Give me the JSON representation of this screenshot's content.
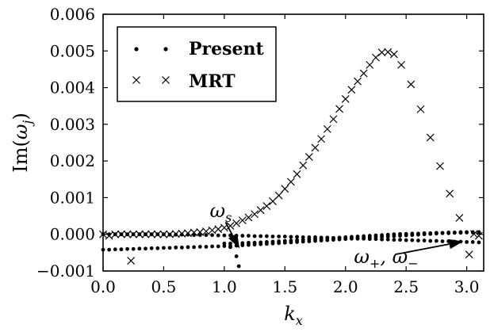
{
  "chart_data": {
    "type": "scatter",
    "title": "",
    "xlabel": "k_x",
    "ylabel": "Im(ω_j)",
    "xlabel_parts": {
      "main": "k",
      "sub": "x"
    },
    "ylabel_parts": {
      "prefix": "Im(",
      "main": "ω",
      "sub": "j",
      "suffix": ")"
    },
    "xlim": [
      0.0,
      3.14
    ],
    "ylim": [
      -0.001,
      0.006
    ],
    "x_ticks": [
      {
        "value": 0.0,
        "label": "0.0"
      },
      {
        "value": 0.5,
        "label": "0.5"
      },
      {
        "value": 1.0,
        "label": "1.0"
      },
      {
        "value": 1.5,
        "label": "1.5"
      },
      {
        "value": 2.0,
        "label": "2.0"
      },
      {
        "value": 2.5,
        "label": "2.5"
      },
      {
        "value": 3.0,
        "label": "3.0"
      }
    ],
    "y_ticks": [
      {
        "value": -0.001,
        "label": "−0.001"
      },
      {
        "value": 0.0,
        "label": "0.000"
      },
      {
        "value": 0.001,
        "label": "0.001"
      },
      {
        "value": 0.002,
        "label": "0.002"
      },
      {
        "value": 0.003,
        "label": "0.003"
      },
      {
        "value": 0.004,
        "label": "0.004"
      },
      {
        "value": 0.005,
        "label": "0.005"
      },
      {
        "value": 0.006,
        "label": "0.006"
      }
    ],
    "legend": {
      "location": "top-left",
      "entries": [
        {
          "label": "Present",
          "marker": "dot"
        },
        {
          "label": "MRT",
          "marker": "x"
        }
      ]
    },
    "series": [
      {
        "name": "Present",
        "marker": "dot",
        "points": [
          {
            "x": 0.0,
            "y": 0.0
          },
          {
            "x": 0.05,
            "y": 0.0
          },
          {
            "x": 0.1,
            "y": 0.0
          },
          {
            "x": 0.15,
            "y": 0.0
          },
          {
            "x": 0.2,
            "y": 0.0
          },
          {
            "x": 0.25,
            "y": 0.0
          },
          {
            "x": 0.3,
            "y": 0.0
          },
          {
            "x": 0.35,
            "y": 0.0
          },
          {
            "x": 0.4,
            "y": 0.0
          },
          {
            "x": 0.45,
            "y": 0.0
          },
          {
            "x": 0.5,
            "y": 0.0
          },
          {
            "x": 0.55,
            "y": -1e-05
          },
          {
            "x": 0.6,
            "y": -1e-05
          },
          {
            "x": 0.65,
            "y": -1e-05
          },
          {
            "x": 0.7,
            "y": -1e-05
          },
          {
            "x": 0.75,
            "y": -2e-05
          },
          {
            "x": 0.8,
            "y": -2e-05
          },
          {
            "x": 0.85,
            "y": -2e-05
          },
          {
            "x": 0.9,
            "y": -2e-05
          },
          {
            "x": 0.95,
            "y": -3e-05
          },
          {
            "x": 1.0,
            "y": -3e-05
          },
          {
            "x": 1.05,
            "y": -3e-05
          },
          {
            "x": 1.1,
            "y": -4e-05
          },
          {
            "x": 1.15,
            "y": -4e-05
          },
          {
            "x": 1.2,
            "y": -4e-05
          },
          {
            "x": 1.25,
            "y": -5e-05
          },
          {
            "x": 1.3,
            "y": -5e-05
          },
          {
            "x": 1.35,
            "y": -5e-05
          },
          {
            "x": 1.4,
            "y": -6e-05
          },
          {
            "x": 1.45,
            "y": -6e-05
          },
          {
            "x": 1.5,
            "y": -6e-05
          },
          {
            "x": 1.55,
            "y": -7e-05
          },
          {
            "x": 1.6,
            "y": -7e-05
          },
          {
            "x": 1.65,
            "y": -8e-05
          },
          {
            "x": 1.7,
            "y": -8e-05
          },
          {
            "x": 1.75,
            "y": -8e-05
          },
          {
            "x": 1.8,
            "y": -9e-05
          },
          {
            "x": 1.85,
            "y": -9e-05
          },
          {
            "x": 1.9,
            "y": -0.0001
          },
          {
            "x": 1.95,
            "y": -0.0001
          },
          {
            "x": 2.0,
            "y": -0.00011
          },
          {
            "x": 2.05,
            "y": -0.00011
          },
          {
            "x": 2.1,
            "y": -0.00012
          },
          {
            "x": 2.15,
            "y": -0.00012
          },
          {
            "x": 2.2,
            "y": -0.00013
          },
          {
            "x": 2.25,
            "y": -0.00013
          },
          {
            "x": 2.3,
            "y": -0.00014
          },
          {
            "x": 2.35,
            "y": -0.00014
          },
          {
            "x": 2.4,
            "y": -0.00015
          },
          {
            "x": 2.45,
            "y": -0.00015
          },
          {
            "x": 2.5,
            "y": -0.00016
          },
          {
            "x": 2.55,
            "y": -0.00016
          },
          {
            "x": 2.6,
            "y": -0.00017
          },
          {
            "x": 2.65,
            "y": -0.00017
          },
          {
            "x": 2.7,
            "y": -0.00018
          },
          {
            "x": 2.75,
            "y": -0.00018
          },
          {
            "x": 2.8,
            "y": -0.00019
          },
          {
            "x": 2.85,
            "y": -0.00019
          },
          {
            "x": 2.9,
            "y": -0.0002
          },
          {
            "x": 2.95,
            "y": -0.0002
          },
          {
            "x": 3.0,
            "y": -0.00021
          },
          {
            "x": 3.05,
            "y": -0.00021
          },
          {
            "x": 3.1,
            "y": -0.00022
          },
          {
            "x": 0.0,
            "y": -0.00042
          },
          {
            "x": 0.05,
            "y": -0.00042
          },
          {
            "x": 0.1,
            "y": -0.00041
          },
          {
            "x": 0.15,
            "y": -0.00041
          },
          {
            "x": 0.2,
            "y": -0.0004
          },
          {
            "x": 0.25,
            "y": -0.0004
          },
          {
            "x": 0.3,
            "y": -0.00039
          },
          {
            "x": 0.35,
            "y": -0.00039
          },
          {
            "x": 0.4,
            "y": -0.00038
          },
          {
            "x": 0.45,
            "y": -0.00038
          },
          {
            "x": 0.5,
            "y": -0.00037
          },
          {
            "x": 0.55,
            "y": -0.00037
          },
          {
            "x": 0.6,
            "y": -0.00036
          },
          {
            "x": 0.65,
            "y": -0.00036
          },
          {
            "x": 0.7,
            "y": -0.00035
          },
          {
            "x": 0.75,
            "y": -0.00035
          },
          {
            "x": 0.8,
            "y": -0.00034
          },
          {
            "x": 0.85,
            "y": -0.00034
          },
          {
            "x": 0.9,
            "y": -0.00033
          },
          {
            "x": 0.95,
            "y": -0.00033
          },
          {
            "x": 1.0,
            "y": -0.00032
          },
          {
            "x": 1.05,
            "y": -0.00032
          },
          {
            "x": 1.1,
            "y": -0.00031
          },
          {
            "x": 1.15,
            "y": -0.0003
          },
          {
            "x": 1.2,
            "y": -0.00029
          },
          {
            "x": 1.25,
            "y": -0.00028
          },
          {
            "x": 1.3,
            "y": -0.00027
          },
          {
            "x": 1.35,
            "y": -0.00026
          },
          {
            "x": 1.4,
            "y": -0.00025
          },
          {
            "x": 1.45,
            "y": -0.00024
          },
          {
            "x": 1.5,
            "y": -0.00023
          },
          {
            "x": 1.55,
            "y": -0.00022
          },
          {
            "x": 1.6,
            "y": -0.00021
          },
          {
            "x": 1.65,
            "y": -0.0002
          },
          {
            "x": 1.7,
            "y": -0.00019
          },
          {
            "x": 1.75,
            "y": -0.00018
          },
          {
            "x": 1.8,
            "y": -0.00017
          },
          {
            "x": 1.85,
            "y": -0.00016
          },
          {
            "x": 1.9,
            "y": -0.00015
          },
          {
            "x": 1.95,
            "y": -0.00014
          },
          {
            "x": 2.0,
            "y": -0.00013
          },
          {
            "x": 2.05,
            "y": -0.00012
          },
          {
            "x": 2.1,
            "y": -0.00011
          },
          {
            "x": 2.15,
            "y": -0.0001
          },
          {
            "x": 2.2,
            "y": -9e-05
          },
          {
            "x": 2.25,
            "y": -8e-05
          },
          {
            "x": 2.3,
            "y": -7e-05
          },
          {
            "x": 2.35,
            "y": -6e-05
          },
          {
            "x": 2.4,
            "y": -5e-05
          },
          {
            "x": 2.45,
            "y": -4e-05
          },
          {
            "x": 2.5,
            "y": -3e-05
          },
          {
            "x": 2.55,
            "y": -2e-05
          },
          {
            "x": 2.6,
            "y": -1e-05
          },
          {
            "x": 2.65,
            "y": 0.0
          },
          {
            "x": 2.7,
            "y": 1e-05
          },
          {
            "x": 2.75,
            "y": 2e-05
          },
          {
            "x": 2.8,
            "y": 3e-05
          },
          {
            "x": 2.85,
            "y": 3e-05
          },
          {
            "x": 2.9,
            "y": 4e-05
          },
          {
            "x": 2.95,
            "y": 4e-05
          },
          {
            "x": 3.0,
            "y": 5e-05
          },
          {
            "x": 3.05,
            "y": 5e-05
          },
          {
            "x": 3.1,
            "y": 5e-05
          },
          {
            "x": 1.0,
            "y": -0.00025
          },
          {
            "x": 1.05,
            "y": -0.00025
          },
          {
            "x": 1.1,
            "y": -0.00024
          },
          {
            "x": 1.15,
            "y": -0.00024
          },
          {
            "x": 1.2,
            "y": -0.00023
          },
          {
            "x": 1.25,
            "y": -0.00023
          },
          {
            "x": 1.3,
            "y": -0.00022
          },
          {
            "x": 1.35,
            "y": -0.00021
          },
          {
            "x": 1.4,
            "y": -0.0002
          },
          {
            "x": 1.45,
            "y": -0.00019
          },
          {
            "x": 1.5,
            "y": -0.00018
          },
          {
            "x": 1.55,
            "y": -0.00017
          },
          {
            "x": 1.6,
            "y": -0.00016
          },
          {
            "x": 1.65,
            "y": -0.00015
          },
          {
            "x": 1.7,
            "y": -0.00014
          },
          {
            "x": 1.75,
            "y": -0.00013
          },
          {
            "x": 1.8,
            "y": -0.00012
          },
          {
            "x": 1.85,
            "y": -0.00011
          },
          {
            "x": 1.9,
            "y": -0.0001
          },
          {
            "x": 1.95,
            "y": -9e-05
          },
          {
            "x": 2.0,
            "y": -8e-05
          },
          {
            "x": 2.05,
            "y": -7e-05
          },
          {
            "x": 2.1,
            "y": -6e-05
          },
          {
            "x": 2.15,
            "y": -5e-05
          },
          {
            "x": 2.2,
            "y": -4e-05
          },
          {
            "x": 2.25,
            "y": -3e-05
          },
          {
            "x": 2.3,
            "y": -2e-05
          },
          {
            "x": 2.35,
            "y": -1e-05
          },
          {
            "x": 2.4,
            "y": 0.0
          },
          {
            "x": 2.45,
            "y": 1e-05
          },
          {
            "x": 2.5,
            "y": 1e-05
          },
          {
            "x": 2.55,
            "y": 2e-05
          },
          {
            "x": 2.6,
            "y": 2e-05
          },
          {
            "x": 2.65,
            "y": 3e-05
          },
          {
            "x": 2.7,
            "y": 3e-05
          },
          {
            "x": 2.75,
            "y": 4e-05
          },
          {
            "x": 2.8,
            "y": 4e-05
          },
          {
            "x": 2.85,
            "y": 5e-05
          },
          {
            "x": 2.9,
            "y": 5e-05
          },
          {
            "x": 2.95,
            "y": 6e-05
          },
          {
            "x": 3.0,
            "y": 6e-05
          },
          {
            "x": 3.05,
            "y": 6e-05
          },
          {
            "x": 3.1,
            "y": 6e-05
          },
          {
            "x": 1.05,
            "y": -0.00035
          },
          {
            "x": 1.1,
            "y": -0.0006
          },
          {
            "x": 1.12,
            "y": -0.00087
          }
        ]
      },
      {
        "name": "MRT",
        "marker": "x",
        "points": [
          {
            "x": 0.0,
            "y": 0.0
          },
          {
            "x": 0.05,
            "y": -4e-05
          },
          {
            "x": 0.1,
            "y": 0.0
          },
          {
            "x": 0.15,
            "y": 0.0
          },
          {
            "x": 0.2,
            "y": 0.0
          },
          {
            "x": 0.25,
            "y": 0.0
          },
          {
            "x": 0.3,
            "y": 0.0
          },
          {
            "x": 0.35,
            "y": 0.0
          },
          {
            "x": 0.4,
            "y": 0.0
          },
          {
            "x": 0.45,
            "y": 0.0
          },
          {
            "x": 0.5,
            "y": 0.0
          },
          {
            "x": 0.55,
            "y": 0.0
          },
          {
            "x": 0.6,
            "y": 1e-05
          },
          {
            "x": 0.65,
            "y": 2e-05
          },
          {
            "x": 0.7,
            "y": 3e-05
          },
          {
            "x": 0.75,
            "y": 5e-05
          },
          {
            "x": 0.8,
            "y": 6e-05
          },
          {
            "x": 0.85,
            "y": 8e-05
          },
          {
            "x": 0.9,
            "y": 0.00011
          },
          {
            "x": 0.95,
            "y": 0.00014
          },
          {
            "x": 1.0,
            "y": 0.00018
          },
          {
            "x": 1.05,
            "y": 0.00023
          },
          {
            "x": 1.1,
            "y": 0.0003
          },
          {
            "x": 1.15,
            "y": 0.00038
          },
          {
            "x": 1.2,
            "y": 0.00046
          },
          {
            "x": 1.25,
            "y": 0.00055
          },
          {
            "x": 1.3,
            "y": 0.00066
          },
          {
            "x": 1.35,
            "y": 0.00077
          },
          {
            "x": 1.4,
            "y": 0.0009
          },
          {
            "x": 1.45,
            "y": 0.00106
          },
          {
            "x": 1.5,
            "y": 0.00124
          },
          {
            "x": 1.55,
            "y": 0.00143
          },
          {
            "x": 1.6,
            "y": 0.00164
          },
          {
            "x": 1.65,
            "y": 0.00188
          },
          {
            "x": 1.7,
            "y": 0.00211
          },
          {
            "x": 1.75,
            "y": 0.00236
          },
          {
            "x": 1.8,
            "y": 0.0026
          },
          {
            "x": 1.85,
            "y": 0.00287
          },
          {
            "x": 1.9,
            "y": 0.00314
          },
          {
            "x": 1.95,
            "y": 0.00342
          },
          {
            "x": 2.0,
            "y": 0.00369
          },
          {
            "x": 2.05,
            "y": 0.00394
          },
          {
            "x": 2.1,
            "y": 0.00417
          },
          {
            "x": 2.15,
            "y": 0.00439
          },
          {
            "x": 2.2,
            "y": 0.00462
          },
          {
            "x": 2.25,
            "y": 0.00482
          },
          {
            "x": 2.3,
            "y": 0.00496
          },
          {
            "x": 2.35,
            "y": 0.00497
          },
          {
            "x": 2.4,
            "y": 0.00491
          },
          {
            "x": 2.46,
            "y": 0.00462
          },
          {
            "x": 2.54,
            "y": 0.00409
          },
          {
            "x": 2.62,
            "y": 0.00341
          },
          {
            "x": 2.7,
            "y": 0.00264
          },
          {
            "x": 2.78,
            "y": 0.00186
          },
          {
            "x": 2.86,
            "y": 0.00111
          },
          {
            "x": 2.94,
            "y": 0.00045
          },
          {
            "x": 3.02,
            "y": -0.00055
          },
          {
            "x": 3.06,
            "y": 1e-05
          },
          {
            "x": 3.1,
            "y": -4e-05
          },
          {
            "x": 0.23,
            "y": -0.00072
          }
        ]
      }
    ],
    "annotations": [
      {
        "id": "omega-s",
        "text_main": "ω",
        "text_sub": "s",
        "text_pos": {
          "x": 0.88,
          "y": 0.00047
        },
        "arrow_from": {
          "x": 1.01,
          "y": 0.00033
        },
        "arrow_to": {
          "x": 1.12,
          "y": -0.00035
        }
      },
      {
        "id": "omega-pm",
        "text_main": "ω",
        "text_sub1": "+",
        "text_sep": ", ",
        "text_sub2": "−",
        "text_pos": {
          "x": 2.07,
          "y": -0.00078
        },
        "arrow_from": {
          "x": 2.41,
          "y": -0.00055
        },
        "arrow_to": {
          "x": 2.96,
          "y": -0.0002
        }
      }
    ]
  }
}
